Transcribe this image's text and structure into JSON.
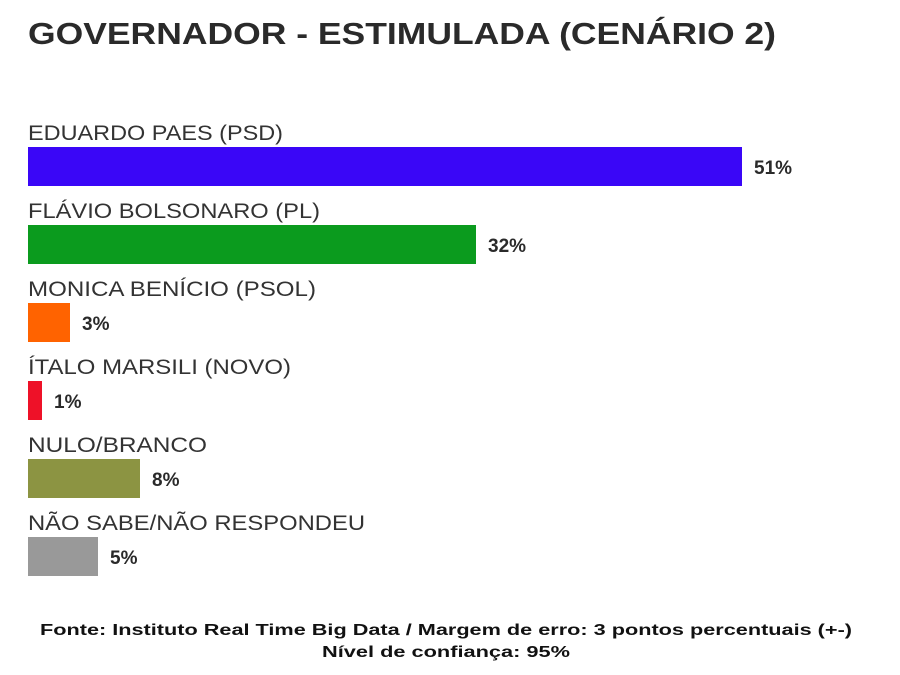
{
  "chart_data": {
    "type": "bar",
    "orientation": "horizontal",
    "title": "GOVERNADOR - ESTIMULADA (CENÁRIO 2)",
    "categories": [
      "EDUARDO PAES (PSD)",
      "FLÁVIO BOLSONARO (PL)",
      "MONICA BENÍCIO (PSOL)",
      "ÍTALO MARSILI (NOVO)",
      "NULO/BRANCO",
      "NÃO SABE/NÃO RESPONDEU"
    ],
    "values": [
      51,
      32,
      3,
      1,
      8,
      5
    ],
    "value_labels": [
      "51%",
      "32%",
      "3%",
      "1%",
      "8%",
      "5%"
    ],
    "colors": [
      "#3a06f7",
      "#0b9b1e",
      "#ff6300",
      "#ee1128",
      "#8c9442",
      "#999999"
    ],
    "xlabel": "",
    "ylabel": "",
    "grid": false,
    "legend": "none"
  },
  "footer": {
    "line1": "Fonte: Instituto Real Time Big Data / Margem de erro: 3 pontos percentuais (+-)",
    "line2": "Nível de confiança: 95%"
  }
}
